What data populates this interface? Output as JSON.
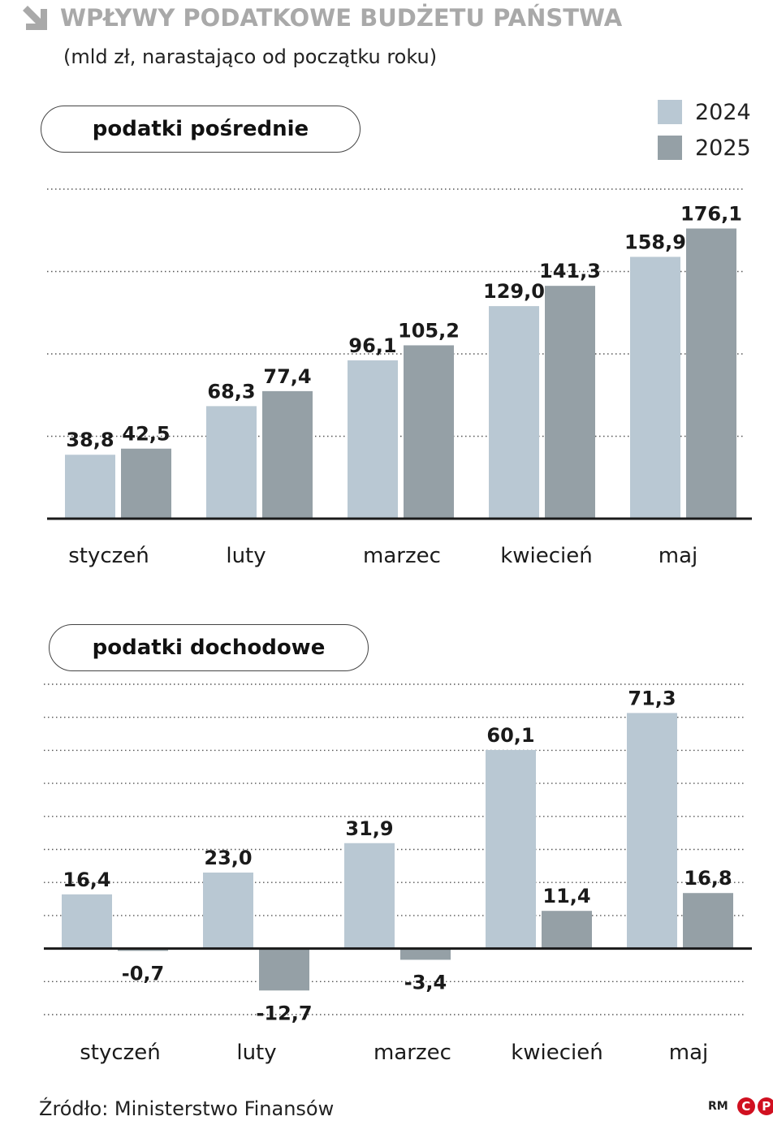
{
  "header": {
    "title": "WPŁYWY PODATKOWE BUDŻETU PAŃSTWA",
    "subtitle": "(mld zł, narastająco od początku roku)"
  },
  "legend": {
    "items": [
      {
        "label": "2024",
        "color": "#b9c8d3"
      },
      {
        "label": "2025",
        "color": "#95a0a6"
      }
    ]
  },
  "chart_data": [
    {
      "type": "bar",
      "title": "podatki pośrednie",
      "categories": [
        "styczeń",
        "luty",
        "marzec",
        "kwiecień",
        "maj"
      ],
      "series": [
        {
          "name": "2024",
          "values": [
            38.8,
            68.3,
            96.1,
            129.0,
            158.9
          ],
          "labels": [
            "38,8",
            "68,3",
            "96,1",
            "129,0",
            "158,9"
          ]
        },
        {
          "name": "2025",
          "values": [
            42.5,
            77.4,
            105.2,
            141.3,
            176.1
          ],
          "labels": [
            "42,5",
            "77,4",
            "105,2",
            "141,3",
            "176,1"
          ]
        }
      ],
      "ylim": [
        0,
        200
      ],
      "grid": true
    },
    {
      "type": "bar",
      "title": "podatki dochodowe",
      "categories": [
        "styczeń",
        "luty",
        "marzec",
        "kwiecień",
        "maj"
      ],
      "series": [
        {
          "name": "2024",
          "values": [
            16.4,
            23.0,
            31.9,
            60.1,
            71.3
          ],
          "labels": [
            "16,4",
            "23,0",
            "31,9",
            "60,1",
            "71,3"
          ]
        },
        {
          "name": "2025",
          "values": [
            -0.7,
            -12.7,
            -3.4,
            11.4,
            16.8
          ],
          "labels": [
            "-0,7",
            "-12,7",
            "-3,4",
            "11,4",
            "16,8"
          ]
        }
      ],
      "ylim": [
        -20,
        80
      ],
      "grid": true
    }
  ],
  "source": "Źródło: Ministerstwo Finansów",
  "brand": {
    "initials": "RM",
    "c": "C",
    "p": "P"
  }
}
